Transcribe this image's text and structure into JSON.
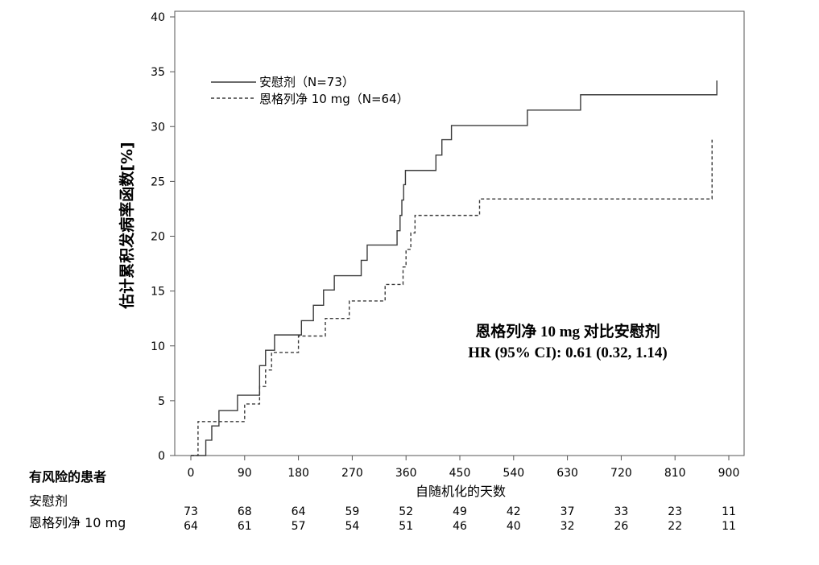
{
  "chart_data": {
    "type": "line",
    "subtype": "step",
    "ylabel": "估计累积发病率函数[%]",
    "xlabel": "自随机化的天数",
    "ylim": [
      0,
      40
    ],
    "xlim": [
      -15,
      915
    ],
    "yticks": [
      0,
      5,
      10,
      15,
      20,
      25,
      30,
      35,
      40
    ],
    "xticks": [
      0,
      90,
      180,
      270,
      360,
      450,
      540,
      630,
      720,
      810,
      900
    ],
    "grid": false,
    "legend_position": "top-left",
    "series": [
      {
        "name": "安慰剂（N=73）",
        "style": "solid",
        "x": [
          0,
          20,
          25,
          35,
          47,
          78,
          110,
          115,
          125,
          140,
          180,
          185,
          205,
          222,
          240,
          285,
          295,
          345,
          350,
          353,
          356,
          359,
          400,
          410,
          420,
          436,
          523,
          563,
          652,
          880
        ],
        "y": [
          0,
          0,
          1.4,
          2.7,
          4.1,
          5.5,
          5.5,
          8.2,
          9.6,
          11.0,
          11.0,
          12.3,
          13.7,
          15.1,
          16.4,
          17.8,
          19.2,
          20.5,
          21.9,
          23.3,
          24.7,
          26.0,
          26.0,
          27.4,
          28.8,
          30.1,
          30.1,
          31.5,
          32.9,
          34.2
        ],
        "y_calibrated_to_axis": [
          0,
          0,
          1.4,
          2.7,
          4.1,
          5.5,
          5.5,
          8.2,
          9.6,
          11.0,
          11.0,
          12.3,
          13.7,
          15.1,
          16.4,
          17.8,
          19.2,
          20.5,
          21.9,
          23.3,
          24.7,
          26.0,
          26.0,
          27.4,
          28.8,
          30.1,
          30.1,
          31.5,
          32.9,
          34.2
        ]
      },
      {
        "name": "恩格列净 10 mg（N=64）",
        "style": "dashed",
        "x": [
          0,
          12,
          50,
          90,
          115,
          125,
          135,
          180,
          225,
          265,
          325,
          355,
          360,
          368,
          375,
          388,
          483,
          864,
          872
        ],
        "y": [
          0,
          3.1,
          3.1,
          4.7,
          6.3,
          7.8,
          9.4,
          10.9,
          12.5,
          14.1,
          15.6,
          17.2,
          18.8,
          20.3,
          21.9,
          21.9,
          23.4,
          23.4,
          28.8
        ],
        "y_calibrated_to_axis": [
          0,
          3.1,
          3.1,
          4.7,
          6.3,
          7.8,
          9.4,
          10.9,
          12.5,
          14.1,
          15.6,
          17.2,
          18.8,
          20.3,
          21.9,
          21.9,
          23.4,
          23.4,
          28.8
        ]
      }
    ],
    "annotation": {
      "line1": "恩格列净 10 mg 对比安慰剂",
      "line2": "HR (95% CI): 0.61 (0.32, 1.14)"
    }
  },
  "risk_table": {
    "title": "有风险的患者",
    "days": [
      0,
      90,
      180,
      270,
      360,
      450,
      540,
      630,
      720,
      810,
      900
    ],
    "rows": [
      {
        "label": "安慰剂",
        "values": [
          "73",
          "68",
          "64",
          "59",
          "52",
          "49",
          "42",
          "37",
          "33",
          "23",
          "11"
        ]
      },
      {
        "label": "恩格列净 10 mg",
        "values": [
          "64",
          "61",
          "57",
          "54",
          "51",
          "46",
          "40",
          "32",
          "26",
          "22",
          "11"
        ]
      }
    ]
  },
  "colors": {
    "line": "#3a3a3a",
    "axis": "#555555",
    "text": "#000000"
  }
}
